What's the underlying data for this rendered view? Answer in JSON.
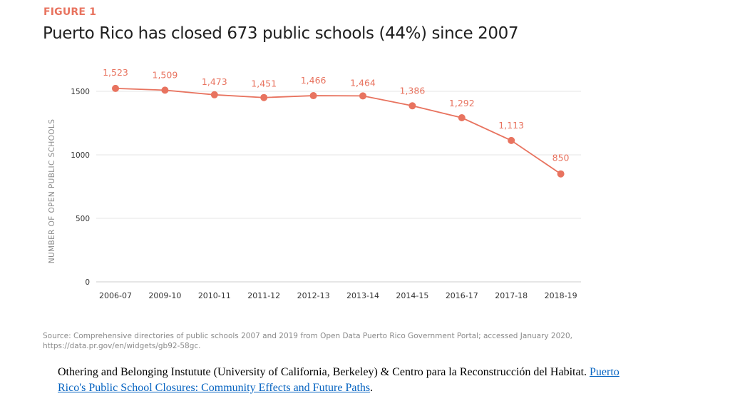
{
  "figure_label": "FIGURE 1",
  "title": "Puerto Rico has closed 673 public schools (44%) since 2007",
  "source": "Source: Comprehensive directories of public schools 2007 and 2019 from Open Data Puerto Rico Government Portal; accessed January 2020, https://data.pr.gov/en/widgets/gb92-58gc.",
  "citation": {
    "text": "Othering and Belonging Instutute (University of California, Berkeley) & Centro para la Reconstrucción del Habitat. ",
    "link_text": "Puerto Rico's Public School Closures: Community Effects and Future Paths",
    "end": "."
  },
  "colors": {
    "accent": "#e8735f",
    "grid": "#e6e6e6",
    "axis": "#cccccc",
    "tick_text": "#333333",
    "ylabel": "#8a8a8a"
  },
  "chart_data": {
    "type": "line",
    "title": "Puerto Rico has closed 673 public schools (44%) since 2007",
    "xlabel": "",
    "ylabel": "NUMBER OF OPEN PUBLIC SCHOOLS",
    "ylim": [
      0,
      1700
    ],
    "yticks": [
      0,
      500,
      1000,
      1500
    ],
    "grid": true,
    "categories": [
      "2006-07",
      "2009-10",
      "2010-11",
      "2011-12",
      "2012-13",
      "2013-14",
      "2014-15",
      "2016-17",
      "2017-18",
      "2018-19"
    ],
    "series": [
      {
        "name": "Open public schools",
        "values": [
          1523,
          1509,
          1473,
          1451,
          1466,
          1464,
          1386,
          1292,
          1113,
          850
        ],
        "labels": [
          "1,523",
          "1,509",
          "1,473",
          "1,451",
          "1,466",
          "1,464",
          "1,386",
          "1,292",
          "1,113",
          "850"
        ]
      }
    ]
  }
}
